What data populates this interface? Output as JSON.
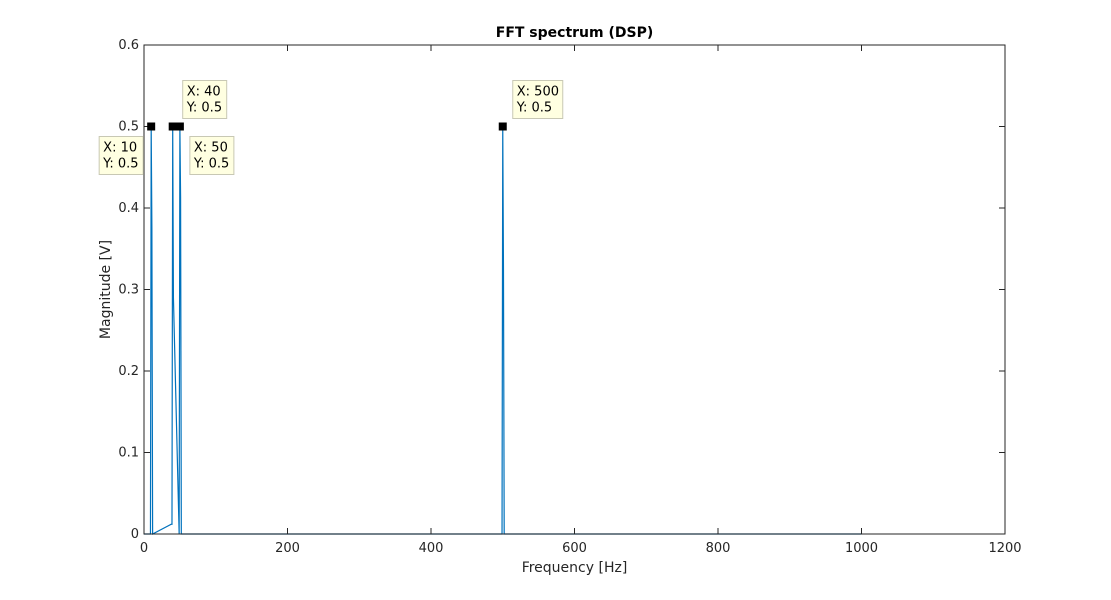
{
  "chart_data": {
    "type": "line",
    "title": "FFT spectrum (DSP)",
    "xlabel": "Frequency [Hz]",
    "ylabel": "Magnitude [V]",
    "xlim": [
      0,
      1200
    ],
    "ylim": [
      0,
      0.6
    ],
    "xticks": [
      0,
      200,
      400,
      600,
      800,
      1000,
      1200
    ],
    "xtick_labels": [
      "0",
      "200",
      "400",
      "600",
      "800",
      "1000",
      "1200"
    ],
    "yticks": [
      0,
      0.1,
      0.2,
      0.3,
      0.4,
      0.5,
      0.6
    ],
    "ytick_labels": [
      "0",
      "0.1",
      "0.2",
      "0.3",
      "0.4",
      "0.5",
      "0.6"
    ],
    "grid": false,
    "line_color": "#0072BD",
    "series": [
      {
        "values_x": [
          0,
          9,
          10,
          11,
          12,
          38,
          39,
          40,
          41,
          49,
          50,
          51,
          52,
          499,
          500,
          501,
          502,
          1000
        ],
        "values_y": [
          0,
          0,
          0.5,
          0.375,
          0,
          0.012,
          0.012,
          0.5,
          0.29,
          0,
          0.5,
          0.413,
          0,
          0,
          0.5,
          0.325,
          0,
          0
        ]
      }
    ],
    "datatips": [
      {
        "x": 10,
        "y": 0.5,
        "x_text": "X: 10",
        "y_text": "Y: 0.5"
      },
      {
        "x": 40,
        "y": 0.5,
        "x_text": "X: 40",
        "y_text": "Y: 0.5"
      },
      {
        "x": 50,
        "y": 0.5,
        "x_text": "X: 50",
        "y_text": "Y: 0.5"
      },
      {
        "x": 500,
        "y": 0.5,
        "x_text": "X: 500",
        "y_text": "Y: 0.5"
      }
    ],
    "datatip_bg": "#ffffe1",
    "datatip_border": "#c8c8b4"
  }
}
